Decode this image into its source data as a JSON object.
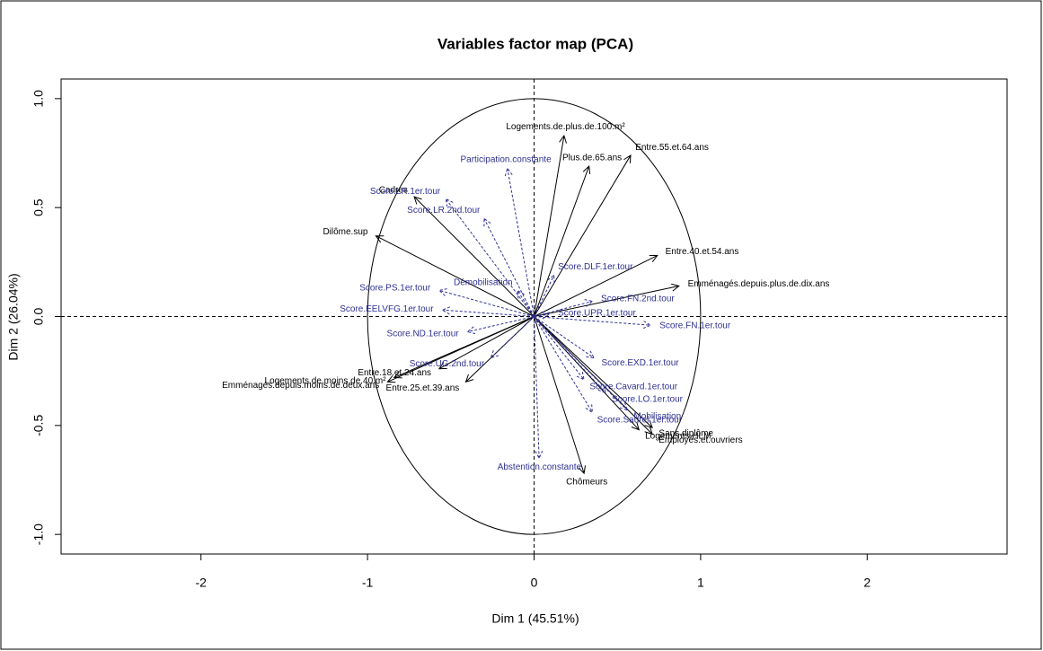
{
  "chart_data": {
    "type": "biplot",
    "title": "Variables factor map (PCA)",
    "xlabel": "Dim 1 (45.51%)",
    "ylabel": "Dim 2 (26.04%)",
    "xlim": [
      -2.84,
      2.84
    ],
    "ylim": [
      -1.09,
      1.09
    ],
    "xticks": [
      -2,
      -1,
      0,
      1,
      2
    ],
    "yticks": [
      {
        "value": -1,
        "label": "-1.0"
      },
      -0.5,
      {
        "value": 0,
        "label": "0.0"
      },
      0.5,
      {
        "value": 1,
        "label": "1.0"
      }
    ],
    "series": [
      {
        "color": "#000000",
        "dashed": false,
        "labels": [
          "Logements.de.plus.de.100.m²",
          "Plus.de.65.ans",
          "Entre.55.et.64.ans",
          "Cadres",
          "Dilôme.sup",
          "Entre.40.et.54.ans",
          "Emménagés.depuis.plus.de.dix.ans",
          "Emménagés.depuis.moins.de.deux.ans",
          "Logements.de.moins.de.40.m²",
          "Entre.18.et.24.ans",
          "Entre.25.et.39.ans",
          "Chômeurs",
          "Logements.HLM",
          "Sans.diplôme",
          "Employés.et.ouvriers"
        ],
        "x": [
          0.18,
          0.33,
          0.58,
          -0.72,
          -0.95,
          0.74,
          0.87,
          -0.88,
          -0.84,
          -0.57,
          -0.41,
          0.3,
          0.63,
          0.71,
          0.71
        ],
        "values": [
          0.83,
          0.69,
          0.74,
          0.55,
          0.37,
          0.28,
          0.14,
          -0.3,
          -0.28,
          -0.24,
          -0.3,
          -0.72,
          -0.52,
          -0.51,
          -0.54
        ]
      },
      {
        "color": "#2e3192",
        "dashed": true,
        "labels": [
          "Participation.constante",
          "Score.LR.1er.tour",
          "Score.LR.2nd.tour",
          "Score.DLF.1er.tour",
          "Démobilisation",
          "Score.PS.1er.tour",
          "Score.EELVFG.1er.tour",
          "Score.UPR.1er.tour",
          "Score.FN.2nd.tour",
          "Score.FN.1er.tour",
          "Score.ND.1er.tour",
          "Score.EXD.1er.tour",
          "Score.Cavard.1er.tour",
          "Score.LO.1er.tour",
          "Mobilisation",
          "Score.Saurel.1er.tour",
          "Score.UG.2nd.tour",
          "Abstention.constante"
        ],
        "x": [
          -0.16,
          -0.53,
          -0.3,
          0.12,
          -0.1,
          -0.57,
          -0.55,
          0.09,
          0.35,
          0.7,
          -0.4,
          0.36,
          0.3,
          0.43,
          0.56,
          0.35,
          -0.26,
          0.03
        ],
        "values": [
          0.68,
          0.54,
          0.45,
          0.19,
          0.12,
          0.12,
          0.03,
          0.01,
          0.07,
          -0.04,
          -0.07,
          -0.19,
          -0.29,
          -0.35,
          -0.43,
          -0.44,
          -0.19,
          -0.65
        ]
      }
    ]
  }
}
